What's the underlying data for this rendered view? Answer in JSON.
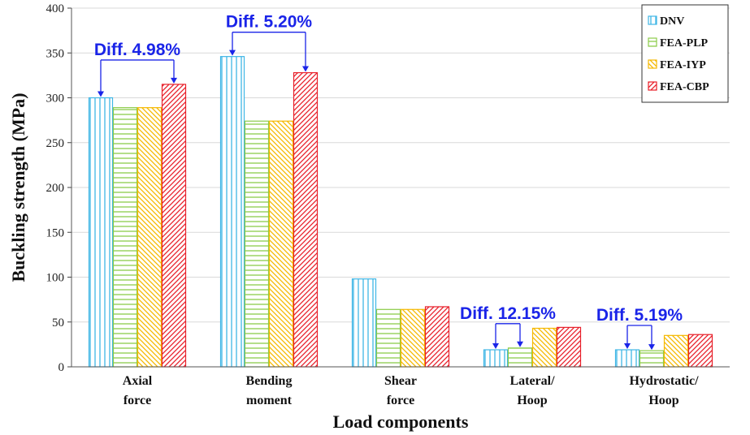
{
  "chart_data": {
    "type": "bar",
    "title": "",
    "xlabel": "Load components",
    "ylabel": "Buckling strength (MPa)",
    "ylim": [
      0,
      400
    ],
    "yticks": [
      0,
      50,
      100,
      150,
      200,
      250,
      300,
      350,
      400
    ],
    "grid": "horizontal",
    "legend_position": "top-right",
    "categories": [
      [
        "Axial",
        "force"
      ],
      [
        "Bending",
        "moment"
      ],
      [
        "Shear",
        "force"
      ],
      [
        "Lateral/",
        "Hoop"
      ],
      [
        "Hydrostatic/",
        "Hoop"
      ]
    ],
    "series": [
      {
        "name": "DNV",
        "color": "#3fb6e6",
        "pattern": "vertical",
        "values": [
          300,
          346,
          98,
          19,
          19
        ]
      },
      {
        "name": "FEA-PLP",
        "color": "#8ccc4a",
        "pattern": "horizontal",
        "values": [
          289,
          274,
          64,
          21,
          18
        ]
      },
      {
        "name": "FEA-IYP",
        "color": "#f5b800",
        "pattern": "diag-down",
        "values": [
          289,
          274,
          64,
          43,
          35
        ]
      },
      {
        "name": "FEA-CBP",
        "color": "#e8202a",
        "pattern": "diag-up",
        "values": [
          315,
          328,
          67,
          44,
          36
        ]
      }
    ],
    "annotations": [
      {
        "text": "Diff. 4.98%",
        "category": 0,
        "from": "DNV",
        "to": "FEA-CBP",
        "color": "#1a24e8"
      },
      {
        "text": "Diff. 5.20%",
        "category": 1,
        "from": "DNV",
        "to": "FEA-CBP",
        "color": "#1a24e8"
      },
      {
        "text": "Diff. 12.15%",
        "category": 3,
        "from": "DNV",
        "to": "FEA-PLP",
        "color": "#1a24e8"
      },
      {
        "text": "Diff. 5.19%",
        "category": 4,
        "from": "DNV",
        "to": "FEA-PLP",
        "color": "#1a24e8"
      }
    ]
  }
}
